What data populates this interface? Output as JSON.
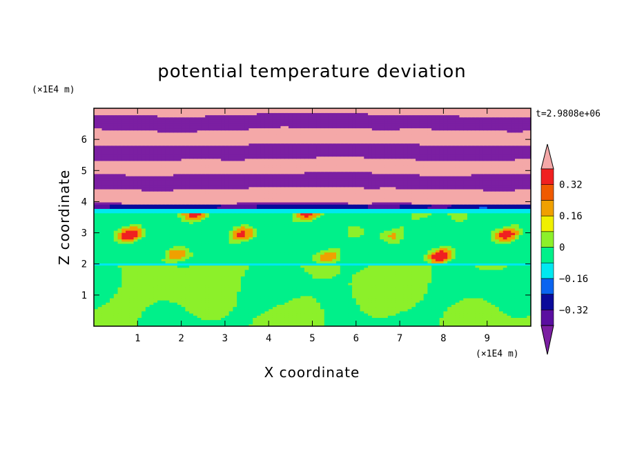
{
  "chart_data": {
    "type": "heatmap",
    "title": "potential temperature deviation",
    "xlabel": "X coordinate",
    "ylabel": "Z coordinate",
    "x_unit": "(×1E4 m)",
    "z_unit": "(×1E4 m)",
    "time_label": "t=2.9808e+06",
    "xlim": [
      0,
      10
    ],
    "ylim": [
      0,
      7
    ],
    "x_ticks": [
      1,
      2,
      3,
      4,
      5,
      6,
      7,
      8,
      9
    ],
    "y_ticks": [
      1,
      2,
      3,
      4,
      5,
      6
    ],
    "colorbar": {
      "levels": [
        -0.4,
        -0.32,
        -0.24,
        -0.16,
        -0.08,
        0,
        0.08,
        0.16,
        0.24,
        0.32,
        0.4
      ],
      "tick_labels": [
        "0.32",
        "0.16",
        "0",
        "−0.16",
        "−0.32"
      ],
      "tick_values": [
        0.32,
        0.16,
        0,
        -0.16,
        -0.32
      ],
      "colors": [
        "#7b1fa2",
        "#5a0fa0",
        "#0a0a9a",
        "#0a64f0",
        "#00e8f0",
        "#00f08a",
        "#8cf02a",
        "#f0f000",
        "#f0a000",
        "#f05a00",
        "#f02020",
        "#f4a8a8"
      ],
      "extend": "both"
    },
    "bands": [
      {
        "z": [
          0,
          2
        ],
        "dominant": 0.03,
        "note": "green/light-green convective layer"
      },
      {
        "z": [
          2,
          3.8
        ],
        "dominant": 0.0,
        "note": "near-zero layer with light-green streaks"
      },
      {
        "z": [
          3.8,
          3.95
        ],
        "dominant": -0.35,
        "note": "blue cold band"
      },
      {
        "z": [
          3.95,
          7
        ],
        "dominant": "alternating",
        "note": "alternating pink (+>0.4) and purple (<-0.4) layers"
      }
    ]
  }
}
